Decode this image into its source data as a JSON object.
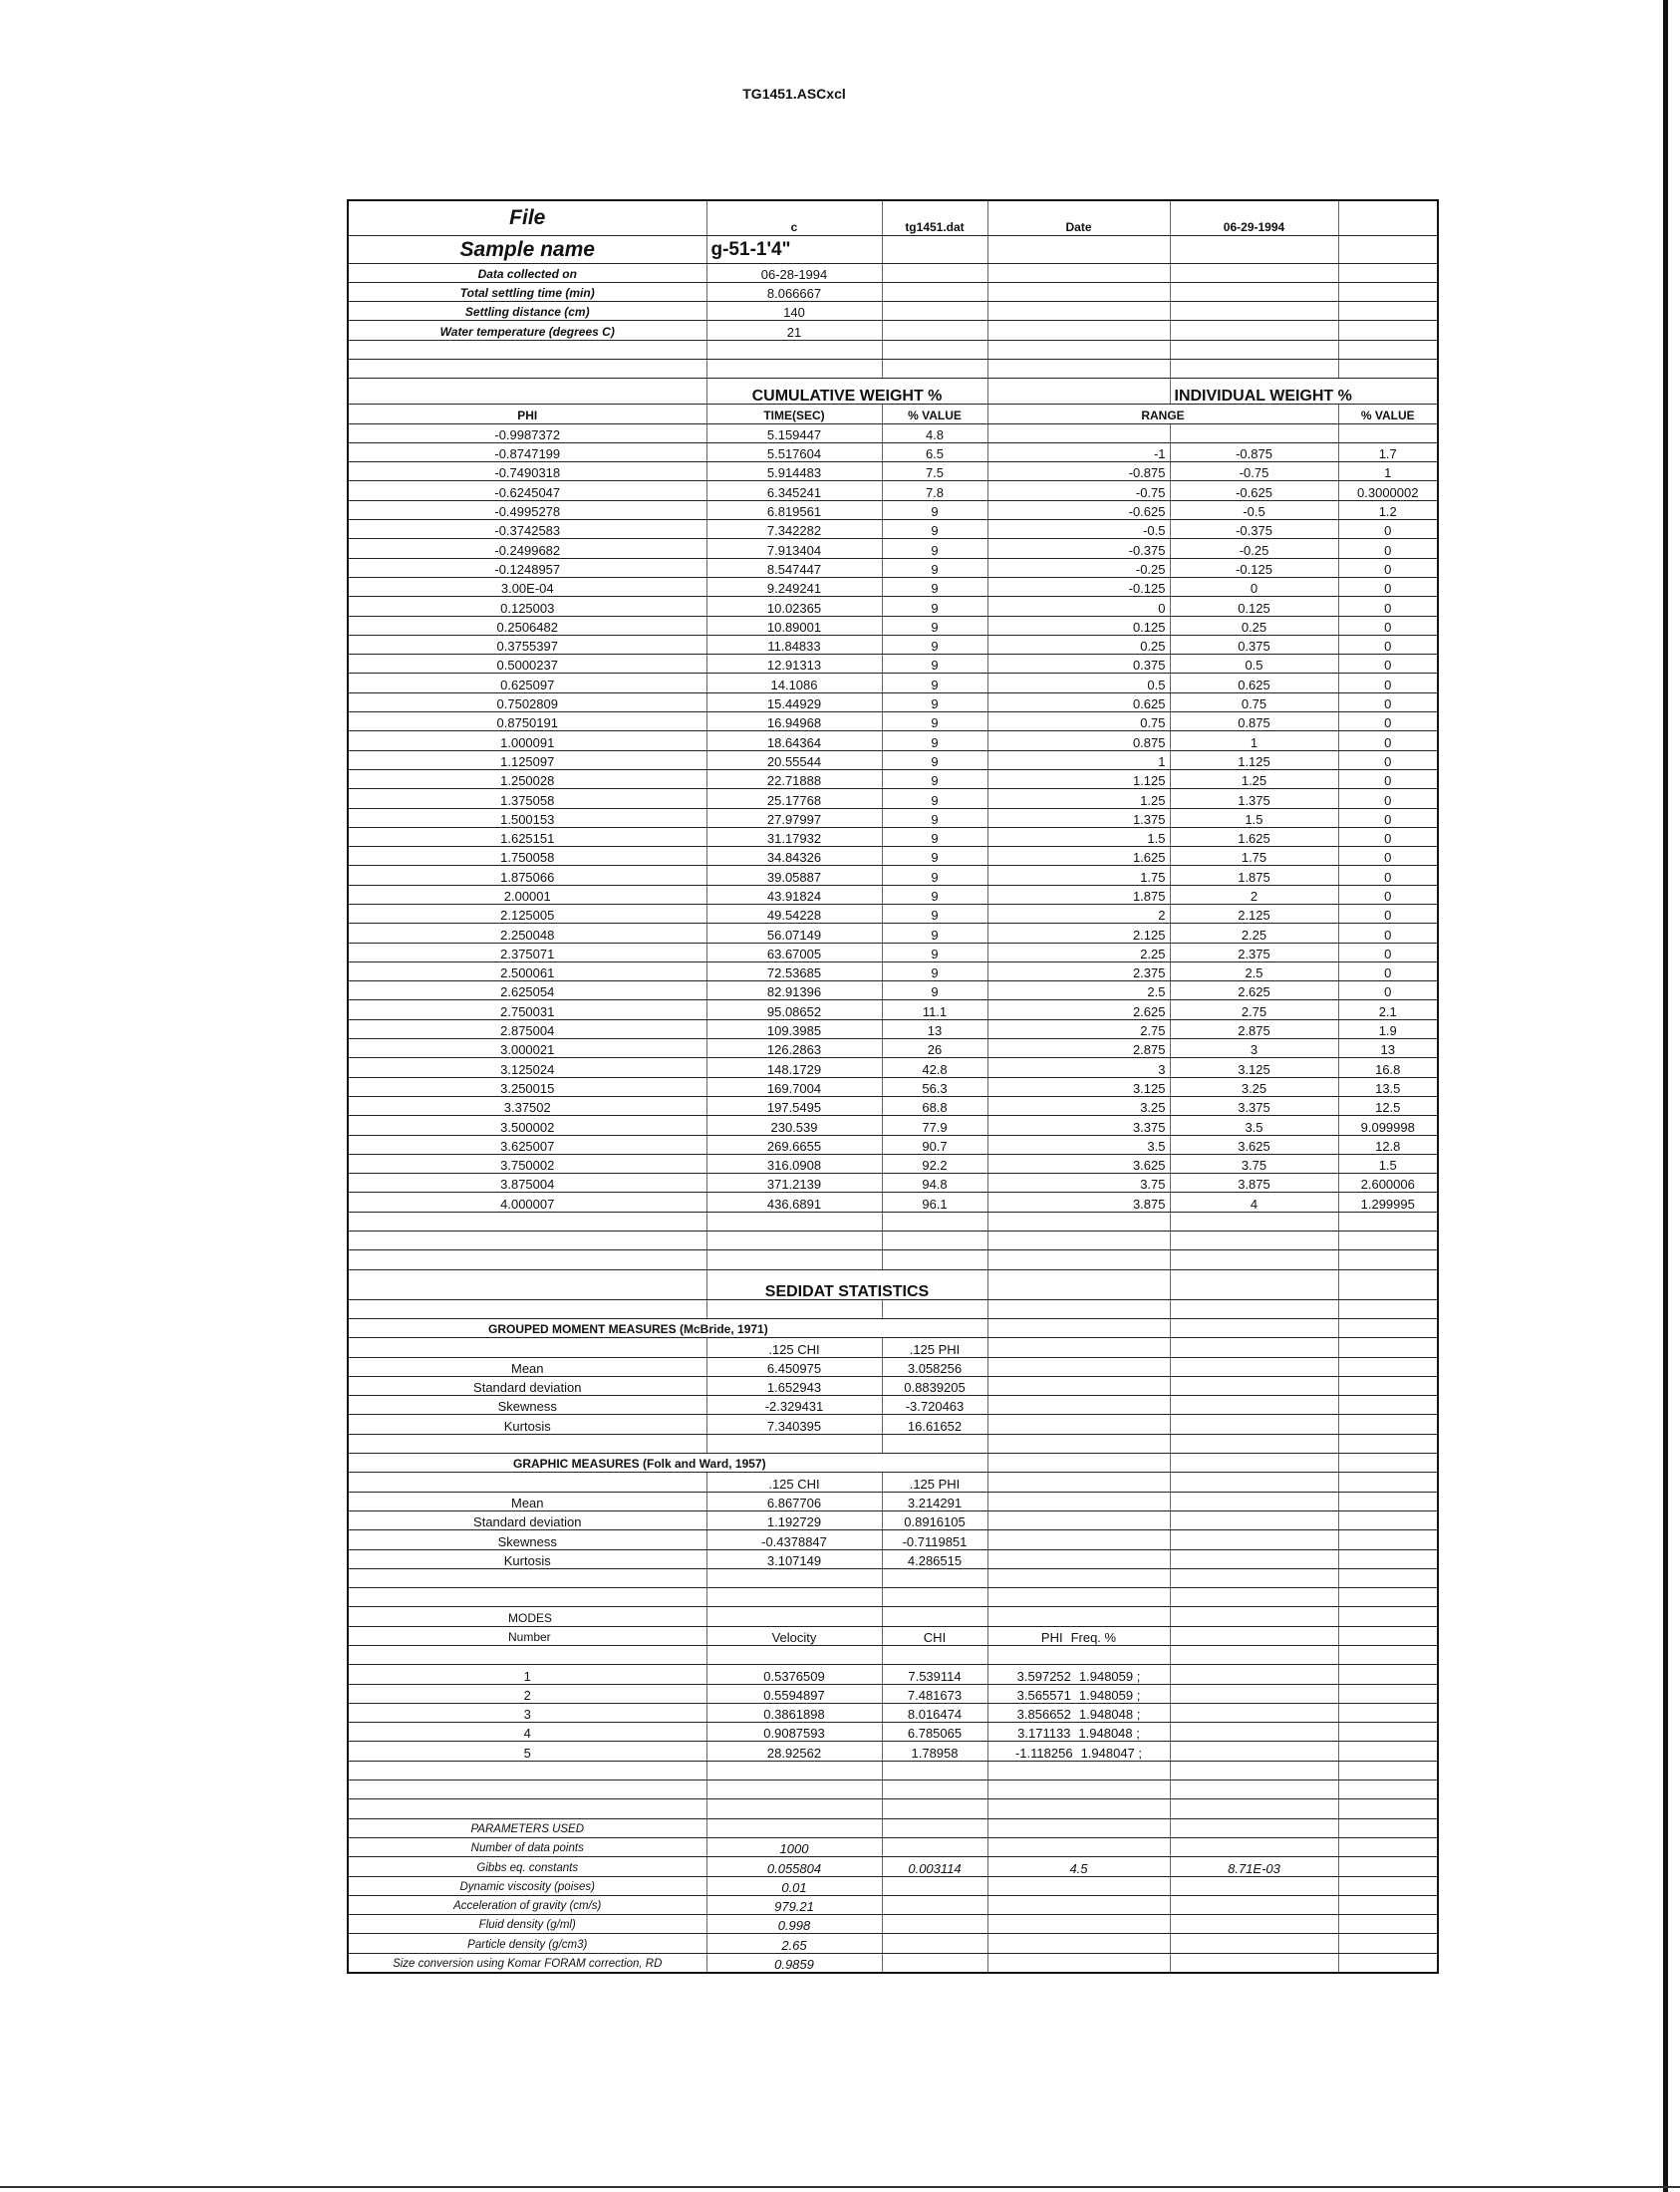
{
  "doc_title": "TG1451.ASCxcl",
  "header": {
    "file_label": "File",
    "file_drive": "c",
    "file_name": "tg1451.dat",
    "date_label": "Date",
    "date_value": "06-29-1994",
    "sample_label": "Sample name",
    "sample_value": "g-51-1'4\""
  },
  "info": [
    {
      "label": "Data collected on",
      "value": "06-28-1994"
    },
    {
      "label": "Total settling time (min)",
      "value": "8.066667"
    },
    {
      "label": "Settling distance (cm)",
      "value": "140"
    },
    {
      "label": "Water temperature (degrees C)",
      "value": "21"
    }
  ],
  "cumulative": {
    "title": "CUMULATIVE WEIGHT %",
    "individual_title": "INDIVIDUAL WEIGHT %",
    "phi_header": "PHI",
    "time_header": "TIME(SEC)",
    "value_header": "% VALUE",
    "range_header": "RANGE",
    "ind_value_header": "% VALUE",
    "rows": [
      [
        "-0.9987372",
        "5.159447",
        "4.8",
        "",
        "",
        ""
      ],
      [
        "-0.8747199",
        "5.517604",
        "6.5",
        "-1",
        "-0.875",
        "1.7"
      ],
      [
        "-0.7490318",
        "5.914483",
        "7.5",
        "-0.875",
        "-0.75",
        "1"
      ],
      [
        "-0.6245047",
        "6.345241",
        "7.8",
        "-0.75",
        "-0.625",
        "0.3000002"
      ],
      [
        "-0.4995278",
        "6.819561",
        "9",
        "-0.625",
        "-0.5",
        "1.2"
      ],
      [
        "-0.3742583",
        "7.342282",
        "9",
        "-0.5",
        "-0.375",
        "0"
      ],
      [
        "-0.2499682",
        "7.913404",
        "9",
        "-0.375",
        "-0.25",
        "0"
      ],
      [
        "-0.1248957",
        "8.547447",
        "9",
        "-0.25",
        "-0.125",
        "0"
      ],
      [
        "3.00E-04",
        "9.249241",
        "9",
        "-0.125",
        "0",
        "0"
      ],
      [
        "0.125003",
        "10.02365",
        "9",
        "0",
        "0.125",
        "0"
      ],
      [
        "0.2506482",
        "10.89001",
        "9",
        "0.125",
        "0.25",
        "0"
      ],
      [
        "0.3755397",
        "11.84833",
        "9",
        "0.25",
        "0.375",
        "0"
      ],
      [
        "0.5000237",
        "12.91313",
        "9",
        "0.375",
        "0.5",
        "0"
      ],
      [
        "0.625097",
        "14.1086",
        "9",
        "0.5",
        "0.625",
        "0"
      ],
      [
        "0.7502809",
        "15.44929",
        "9",
        "0.625",
        "0.75",
        "0"
      ],
      [
        "0.8750191",
        "16.94968",
        "9",
        "0.75",
        "0.875",
        "0"
      ],
      [
        "1.000091",
        "18.64364",
        "9",
        "0.875",
        "1",
        "0"
      ],
      [
        "1.125097",
        "20.55544",
        "9",
        "1",
        "1.125",
        "0"
      ],
      [
        "1.250028",
        "22.71888",
        "9",
        "1.125",
        "1.25",
        "0"
      ],
      [
        "1.375058",
        "25.17768",
        "9",
        "1.25",
        "1.375",
        "0"
      ],
      [
        "1.500153",
        "27.97997",
        "9",
        "1.375",
        "1.5",
        "0"
      ],
      [
        "1.625151",
        "31.17932",
        "9",
        "1.5",
        "1.625",
        "0"
      ],
      [
        "1.750058",
        "34.84326",
        "9",
        "1.625",
        "1.75",
        "0"
      ],
      [
        "1.875066",
        "39.05887",
        "9",
        "1.75",
        "1.875",
        "0"
      ],
      [
        "2.00001",
        "43.91824",
        "9",
        "1.875",
        "2",
        "0"
      ],
      [
        "2.125005",
        "49.54228",
        "9",
        "2",
        "2.125",
        "0"
      ],
      [
        "2.250048",
        "56.07149",
        "9",
        "2.125",
        "2.25",
        "0"
      ],
      [
        "2.375071",
        "63.67005",
        "9",
        "2.25",
        "2.375",
        "0"
      ],
      [
        "2.500061",
        "72.53685",
        "9",
        "2.375",
        "2.5",
        "0"
      ],
      [
        "2.625054",
        "82.91396",
        "9",
        "2.5",
        "2.625",
        "0"
      ],
      [
        "2.750031",
        "95.08652",
        "11.1",
        "2.625",
        "2.75",
        "2.1"
      ],
      [
        "2.875004",
        "109.3985",
        "13",
        "2.75",
        "2.875",
        "1.9"
      ],
      [
        "3.000021",
        "126.2863",
        "26",
        "2.875",
        "3",
        "13"
      ],
      [
        "3.125024",
        "148.1729",
        "42.8",
        "3",
        "3.125",
        "16.8"
      ],
      [
        "3.250015",
        "169.7004",
        "56.3",
        "3.125",
        "3.25",
        "13.5"
      ],
      [
        "3.37502",
        "197.5495",
        "68.8",
        "3.25",
        "3.375",
        "12.5"
      ],
      [
        "3.500002",
        "230.539",
        "77.9",
        "3.375",
        "3.5",
        "9.099998"
      ],
      [
        "3.625007",
        "269.6655",
        "90.7",
        "3.5",
        "3.625",
        "12.8"
      ],
      [
        "3.750002",
        "316.0908",
        "92.2",
        "3.625",
        "3.75",
        "1.5"
      ],
      [
        "3.875004",
        "371.2139",
        "94.8",
        "3.75",
        "3.875",
        "2.600006"
      ],
      [
        "4.000007",
        "436.6891",
        "96.1",
        "3.875",
        "4",
        "1.299995"
      ]
    ]
  },
  "stats": {
    "title": "SEDIDAT STATISTICS",
    "grouped": {
      "title": "GROUPED MOMENT MEASURES (McBride, 1971)",
      "col_chi": ".125  CHI",
      "col_phi": ".125  PHI",
      "rows": [
        [
          "Mean",
          "6.450975",
          "3.058256"
        ],
        [
          "Standard deviation",
          "1.652943",
          "0.8839205"
        ],
        [
          "Skewness",
          "-2.329431",
          "-3.720463"
        ],
        [
          "Kurtosis",
          "7.340395",
          "16.61652"
        ]
      ]
    },
    "graphic": {
      "title": "GRAPHIC MEASURES (Folk and Ward, 1957)",
      "col_chi": ".125  CHI",
      "col_phi": ".125  PHI",
      "rows": [
        [
          "Mean",
          "6.867706",
          "3.214291"
        ],
        [
          "Standard deviation",
          "1.192729",
          "0.8916105"
        ],
        [
          "Skewness",
          "-0.4378847",
          "-0.7119851"
        ],
        [
          "Kurtosis",
          "3.107149",
          "4.286515"
        ]
      ]
    },
    "modes": {
      "title": "MODES",
      "number_header": "Number",
      "velocity_header": "Velocity",
      "chi_header": "CHI",
      "phi_header": "PHI",
      "freq_header": "Freq. %",
      "rows": [
        [
          "1",
          "0.5376509",
          "7.539114",
          "3.597252",
          "1.948059 ;"
        ],
        [
          "2",
          "0.5594897",
          "7.481673",
          "3.565571",
          "1.948059 ;"
        ],
        [
          "3",
          "0.3861898",
          "8.016474",
          "3.856652",
          "1.948048 ;"
        ],
        [
          "4",
          "0.9087593",
          "6.785065",
          "3.171133",
          "1.948048 ;"
        ],
        [
          "5",
          "28.92562",
          "1.78958",
          "-1.118256",
          "1.948047 ;"
        ]
      ]
    }
  },
  "parameters": {
    "title": "PARAMETERS USED",
    "rows": [
      [
        "Number of data points",
        "1000",
        "",
        "",
        ""
      ],
      [
        "Gibbs eq. constants",
        "0.055804",
        "0.003114",
        "4.5",
        "8.71E-03"
      ],
      [
        "Dynamic viscosity (poises)",
        "0.01",
        "",
        "",
        ""
      ],
      [
        "Acceleration of gravity (cm/s)",
        "979.21",
        "",
        "",
        ""
      ],
      [
        "Fluid density (g/ml)",
        "0.998",
        "",
        "",
        ""
      ],
      [
        "Particle density (g/cm3)",
        "2.65",
        "",
        "",
        ""
      ],
      [
        "Size conversion using Komar FORAM correction, RD",
        "0.9859",
        "",
        "",
        ""
      ]
    ]
  }
}
